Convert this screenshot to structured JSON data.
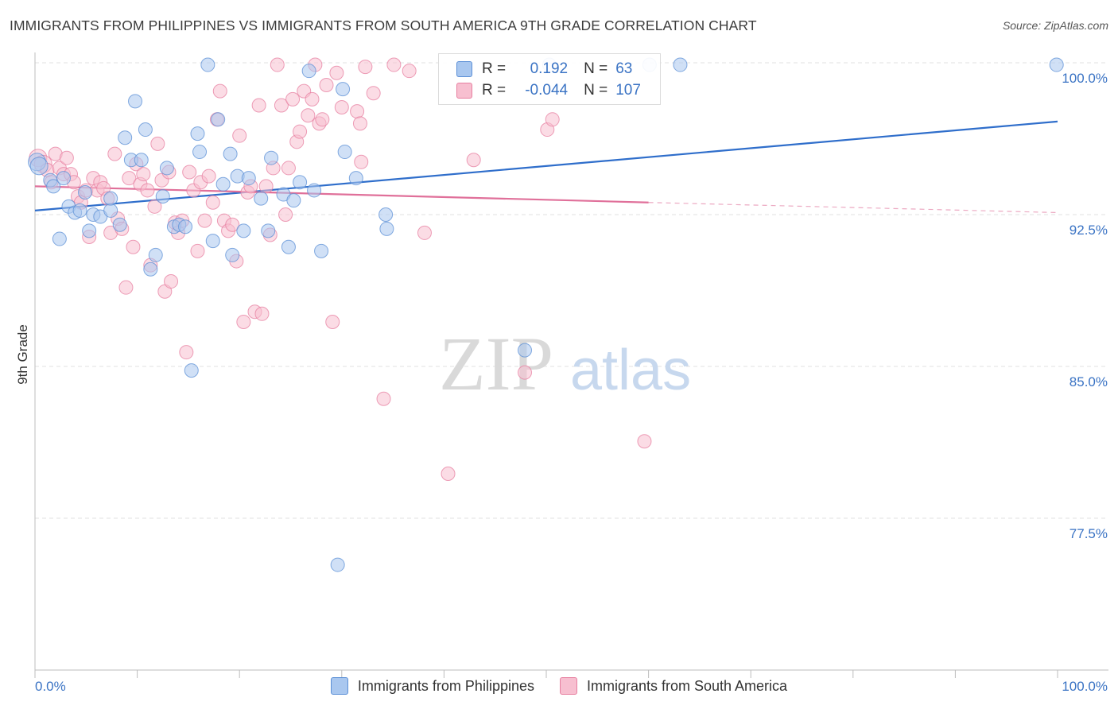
{
  "title": "IMMIGRANTS FROM PHILIPPINES VS IMMIGRANTS FROM SOUTH AMERICA 9TH GRADE CORRELATION CHART",
  "source": "Source: ZipAtlas.com",
  "watermark": {
    "zip": "ZIP",
    "atlas": "atlas"
  },
  "legend_top": [
    {
      "r_label": "R =",
      "r_value": "0.192",
      "n_label": "N =",
      "n_value": "63",
      "color": "#a9c7ef",
      "edge": "#5b8fd6"
    },
    {
      "r_label": "R =",
      "r_value": "-0.044",
      "n_label": "N =",
      "n_value": "107",
      "color": "#f7bfd0",
      "edge": "#e77fa0"
    }
  ],
  "chart_data": {
    "type": "scatter",
    "ylabel": "9th Grade",
    "xlim": [
      0,
      100
    ],
    "ylim": [
      70,
      100
    ],
    "y_ticks": [
      100,
      92.5,
      85,
      77.5
    ],
    "y_tick_labels": [
      "100.0%",
      "92.5%",
      "85.0%",
      "77.5%"
    ],
    "x_tick_labels": [
      "0.0%",
      "100.0%"
    ],
    "grid": true,
    "series": [
      {
        "name": "Immigrants from Philippines",
        "color": "#5b8fd6",
        "fill": "#a9c7ef",
        "line_color": "#2f6ecb",
        "trend": {
          "x": [
            0,
            100
          ],
          "y": [
            92.7,
            97.1
          ]
        },
        "points": [
          [
            0.2,
            95.1
          ],
          [
            0.4,
            94.9
          ],
          [
            1.5,
            94.2
          ],
          [
            1.8,
            93.9
          ],
          [
            2.4,
            91.3
          ],
          [
            2.8,
            94.3
          ],
          [
            3.3,
            92.9
          ],
          [
            3.9,
            92.6
          ],
          [
            4.4,
            92.7
          ],
          [
            4.9,
            93.6
          ],
          [
            5.3,
            91.7
          ],
          [
            5.7,
            92.5
          ],
          [
            6.4,
            92.4
          ],
          [
            7.4,
            92.7
          ],
          [
            7.4,
            93.3
          ],
          [
            8.3,
            92.0
          ],
          [
            8.8,
            96.3
          ],
          [
            9.4,
            95.2
          ],
          [
            9.8,
            98.1
          ],
          [
            10.4,
            95.2
          ],
          [
            10.8,
            96.7
          ],
          [
            11.3,
            89.8
          ],
          [
            11.8,
            90.5
          ],
          [
            12.5,
            93.4
          ],
          [
            12.9,
            94.8
          ],
          [
            13.6,
            91.9
          ],
          [
            14.1,
            92.0
          ],
          [
            14.7,
            91.9
          ],
          [
            15.3,
            84.8
          ],
          [
            15.9,
            96.5
          ],
          [
            16.1,
            95.6
          ],
          [
            16.9,
            99.9
          ],
          [
            17.4,
            91.2
          ],
          [
            17.9,
            97.2
          ],
          [
            18.4,
            94.0
          ],
          [
            19.1,
            95.5
          ],
          [
            19.3,
            90.5
          ],
          [
            19.8,
            94.4
          ],
          [
            20.4,
            91.7
          ],
          [
            20.9,
            94.3
          ],
          [
            22.1,
            93.3
          ],
          [
            22.8,
            91.7
          ],
          [
            23.1,
            95.3
          ],
          [
            24.3,
            93.5
          ],
          [
            24.8,
            90.9
          ],
          [
            25.3,
            93.2
          ],
          [
            25.9,
            94.1
          ],
          [
            26.8,
            99.6
          ],
          [
            27.3,
            93.7
          ],
          [
            28.0,
            90.7
          ],
          [
            29.6,
            75.2
          ],
          [
            30.1,
            98.7
          ],
          [
            30.3,
            95.6
          ],
          [
            31.4,
            94.3
          ],
          [
            34.3,
            92.5
          ],
          [
            34.4,
            91.8
          ],
          [
            47.9,
            85.8
          ],
          [
            50.3,
            99.9
          ],
          [
            60.1,
            99.9
          ],
          [
            63.1,
            99.9
          ],
          [
            99.9,
            99.9
          ]
        ]
      },
      {
        "name": "Immigrants from South America",
        "color": "#e77fa0",
        "fill": "#f7bfd0",
        "line_color": "#e0709a",
        "trend": {
          "x": [
            0,
            60,
            100
          ],
          "y": [
            93.9,
            93.1,
            92.6
          ]
        },
        "points": [
          [
            0.3,
            95.3
          ],
          [
            0.8,
            95.0
          ],
          [
            1.2,
            94.7
          ],
          [
            1.6,
            94.1
          ],
          [
            2.0,
            95.5
          ],
          [
            2.4,
            94.8
          ],
          [
            2.8,
            94.5
          ],
          [
            3.1,
            95.3
          ],
          [
            3.5,
            94.5
          ],
          [
            3.8,
            94.1
          ],
          [
            4.2,
            93.4
          ],
          [
            4.5,
            93.1
          ],
          [
            5.0,
            93.7
          ],
          [
            5.3,
            91.4
          ],
          [
            5.7,
            94.3
          ],
          [
            6.1,
            93.7
          ],
          [
            6.4,
            94.1
          ],
          [
            6.7,
            93.8
          ],
          [
            7.1,
            93.3
          ],
          [
            7.4,
            91.6
          ],
          [
            7.8,
            95.5
          ],
          [
            8.1,
            92.3
          ],
          [
            8.5,
            91.8
          ],
          [
            8.9,
            88.9
          ],
          [
            9.2,
            94.3
          ],
          [
            9.6,
            90.9
          ],
          [
            9.9,
            95.0
          ],
          [
            10.3,
            94.0
          ],
          [
            10.6,
            94.5
          ],
          [
            11.0,
            93.7
          ],
          [
            11.3,
            90.0
          ],
          [
            11.7,
            92.9
          ],
          [
            12.0,
            96.0
          ],
          [
            12.4,
            94.2
          ],
          [
            12.7,
            88.7
          ],
          [
            13.1,
            94.6
          ],
          [
            13.3,
            89.2
          ],
          [
            13.7,
            92.1
          ],
          [
            14.0,
            91.6
          ],
          [
            14.4,
            92.2
          ],
          [
            14.8,
            85.7
          ],
          [
            15.1,
            94.6
          ],
          [
            15.5,
            93.7
          ],
          [
            15.9,
            90.7
          ],
          [
            16.2,
            94.1
          ],
          [
            16.6,
            92.2
          ],
          [
            17.0,
            94.4
          ],
          [
            17.4,
            93.1
          ],
          [
            17.8,
            97.2
          ],
          [
            18.1,
            98.6
          ],
          [
            18.5,
            92.2
          ],
          [
            18.9,
            91.7
          ],
          [
            19.3,
            92.0
          ],
          [
            19.7,
            90.2
          ],
          [
            20.0,
            96.4
          ],
          [
            20.4,
            87.2
          ],
          [
            20.8,
            93.6
          ],
          [
            21.1,
            93.9
          ],
          [
            21.5,
            87.7
          ],
          [
            21.9,
            97.9
          ],
          [
            22.2,
            87.6
          ],
          [
            22.6,
            93.9
          ],
          [
            23.0,
            91.5
          ],
          [
            23.3,
            94.8
          ],
          [
            23.7,
            99.9
          ],
          [
            24.1,
            97.9
          ],
          [
            24.5,
            92.5
          ],
          [
            24.8,
            94.8
          ],
          [
            25.2,
            98.2
          ],
          [
            25.6,
            96.1
          ],
          [
            25.9,
            96.6
          ],
          [
            26.3,
            98.6
          ],
          [
            26.7,
            97.4
          ],
          [
            27.1,
            98.2
          ],
          [
            27.4,
            99.9
          ],
          [
            27.8,
            97.0
          ],
          [
            28.1,
            97.2
          ],
          [
            28.5,
            98.9
          ],
          [
            29.1,
            87.2
          ],
          [
            29.5,
            99.5
          ],
          [
            30.0,
            97.8
          ],
          [
            31.5,
            97.6
          ],
          [
            31.8,
            97.0
          ],
          [
            31.9,
            95.1
          ],
          [
            32.3,
            99.8
          ],
          [
            33.1,
            98.5
          ],
          [
            34.1,
            83.4
          ],
          [
            35.1,
            99.9
          ],
          [
            36.6,
            99.6
          ],
          [
            38.1,
            91.6
          ],
          [
            40.4,
            79.7
          ],
          [
            42.9,
            95.2
          ],
          [
            47.9,
            84.7
          ],
          [
            50.1,
            96.7
          ],
          [
            50.6,
            97.2
          ],
          [
            59.6,
            81.3
          ]
        ]
      }
    ]
  }
}
